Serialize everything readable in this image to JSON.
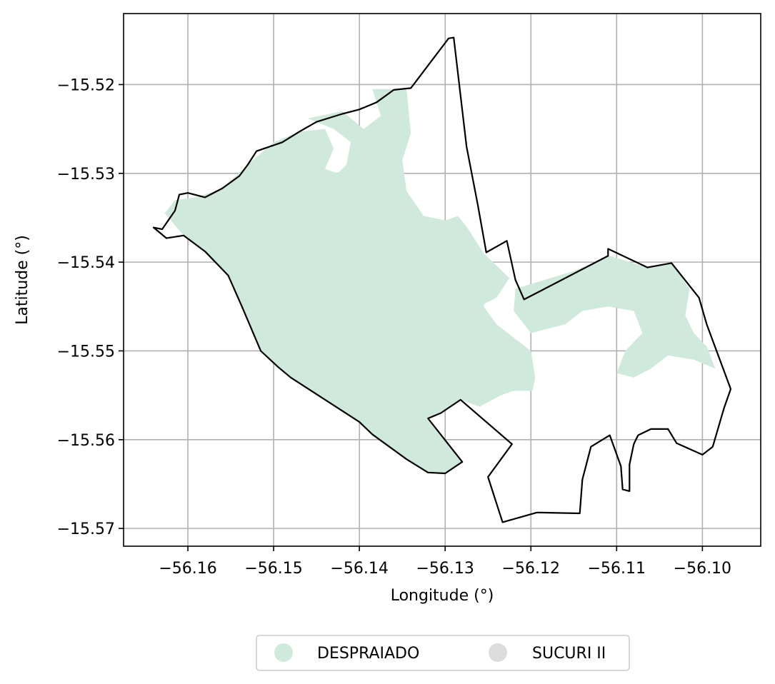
{
  "chart_data": {
    "type": "map",
    "xlabel": "Longitude (°)",
    "ylabel": "Latitude (°)",
    "xlim": [
      -56.1675,
      -56.0932
    ],
    "ylim": [
      -15.572,
      -15.512
    ],
    "x_ticks": [
      -56.16,
      -56.15,
      -56.14,
      -56.13,
      -56.12,
      -56.11,
      -56.1
    ],
    "x_tick_labels": [
      "−56.16",
      "−56.15",
      "−56.14",
      "−56.13",
      "−56.12",
      "−56.11",
      "−56.10"
    ],
    "y_ticks": [
      -15.52,
      -15.53,
      -15.54,
      -15.55,
      -15.56,
      -15.57
    ],
    "y_tick_labels": [
      "−15.52",
      "−15.53",
      "−15.54",
      "−15.55",
      "−15.56",
      "−15.57"
    ],
    "grid": true,
    "legend_position": "bottom-center",
    "legend": [
      {
        "label": "DESPRAIADO",
        "color": "#cfeadc"
      },
      {
        "label": "SUCURI II",
        "color": "#dcdcdc"
      }
    ],
    "boundary_color": "#000000",
    "boundary": [
      [
        -56.164,
        -15.5361
      ],
      [
        -56.163,
        -15.5363
      ],
      [
        -56.1615,
        -15.5342
      ],
      [
        -56.161,
        -15.5324
      ],
      [
        -56.16,
        -15.5322
      ],
      [
        -56.158,
        -15.5327
      ],
      [
        -56.156,
        -15.5317
      ],
      [
        -56.154,
        -15.5303
      ],
      [
        -56.153,
        -15.529
      ],
      [
        -56.152,
        -15.5275
      ],
      [
        -56.149,
        -15.5265
      ],
      [
        -56.147,
        -15.5253
      ],
      [
        -56.145,
        -15.5242
      ],
      [
        -56.142,
        -15.5233
      ],
      [
        -56.14,
        -15.5228
      ],
      [
        -56.138,
        -15.522
      ],
      [
        -56.136,
        -15.5206
      ],
      [
        -56.134,
        -15.5204
      ],
      [
        -56.1296,
        -15.5148
      ],
      [
        -56.129,
        -15.5147
      ],
      [
        -56.1275,
        -15.527
      ],
      [
        -56.1262,
        -15.5335
      ],
      [
        -56.1252,
        -15.5389
      ],
      [
        -56.1228,
        -15.5376
      ],
      [
        -56.1218,
        -15.542
      ],
      [
        -56.1208,
        -15.5442
      ],
      [
        -56.111,
        -15.5393
      ],
      [
        -56.111,
        -15.5385
      ],
      [
        -56.1064,
        -15.5406
      ],
      [
        -56.1036,
        -15.5401
      ],
      [
        -56.1004,
        -15.544
      ],
      [
        -56.0995,
        -15.547
      ],
      [
        -56.0967,
        -15.5543
      ],
      [
        -56.0975,
        -15.5565
      ],
      [
        -56.0988,
        -15.5608
      ],
      [
        -56.1,
        -15.5617
      ],
      [
        -56.103,
        -15.5604
      ],
      [
        -56.104,
        -15.5588
      ],
      [
        -56.106,
        -15.5588
      ],
      [
        -56.1075,
        -15.5595
      ],
      [
        -56.108,
        -15.5605
      ],
      [
        -56.1085,
        -15.5628
      ],
      [
        -56.1085,
        -15.5658
      ],
      [
        -56.1093,
        -15.5656
      ],
      [
        -56.1095,
        -15.563
      ],
      [
        -56.1108,
        -15.5595
      ],
      [
        -56.113,
        -15.5608
      ],
      [
        -56.114,
        -15.5645
      ],
      [
        -56.1143,
        -15.5683
      ],
      [
        -56.1193,
        -15.5682
      ],
      [
        -56.1233,
        -15.5693
      ],
      [
        -56.125,
        -15.5642
      ],
      [
        -56.1222,
        -15.5605
      ],
      [
        -56.1282,
        -15.5555
      ],
      [
        -56.1305,
        -15.557
      ],
      [
        -56.132,
        -15.5576
      ],
      [
        -56.128,
        -15.5625
      ],
      [
        -56.13,
        -15.5638
      ],
      [
        -56.132,
        -15.5637
      ],
      [
        -56.1345,
        -15.5622
      ],
      [
        -56.1385,
        -15.5594
      ],
      [
        -56.14,
        -15.558
      ],
      [
        -56.148,
        -15.553
      ],
      [
        -56.1495,
        -15.5518
      ],
      [
        -56.1515,
        -15.55
      ],
      [
        -56.1537,
        -15.545
      ],
      [
        -56.1553,
        -15.5415
      ],
      [
        -56.158,
        -15.5388
      ],
      [
        -56.1605,
        -15.537
      ],
      [
        -56.1625,
        -15.5373
      ],
      [
        -56.164,
        -15.5361
      ]
    ],
    "despraiado_fill": [
      [
        -56.1627,
        -15.5345
      ],
      [
        -56.1615,
        -15.533
      ],
      [
        -56.159,
        -15.5327
      ],
      [
        -56.156,
        -15.5317
      ],
      [
        -56.153,
        -15.529
      ],
      [
        -56.15,
        -15.5265
      ],
      [
        -56.147,
        -15.5253
      ],
      [
        -56.144,
        -15.525
      ],
      [
        -56.143,
        -15.5272
      ],
      [
        -56.144,
        -15.5295
      ],
      [
        -56.1425,
        -15.53
      ],
      [
        -56.1415,
        -15.529
      ],
      [
        -56.141,
        -15.5265
      ],
      [
        -56.143,
        -15.525
      ],
      [
        -56.146,
        -15.5238
      ],
      [
        -56.142,
        -15.523
      ],
      [
        -56.1395,
        -15.525
      ],
      [
        -56.1375,
        -15.5235
      ],
      [
        -56.1385,
        -15.5205
      ],
      [
        -56.1345,
        -15.5205
      ],
      [
        -56.134,
        -15.5255
      ],
      [
        -56.135,
        -15.5285
      ],
      [
        -56.1345,
        -15.532
      ],
      [
        -56.1325,
        -15.5348
      ],
      [
        -56.13,
        -15.5353
      ],
      [
        -56.1285,
        -15.5348
      ],
      [
        -56.1275,
        -15.536
      ],
      [
        -56.1255,
        -15.539
      ],
      [
        -56.1225,
        -15.5418
      ],
      [
        -56.124,
        -15.544
      ],
      [
        -56.127,
        -15.5455
      ],
      [
        -56.129,
        -15.547
      ],
      [
        -56.132,
        -15.55
      ],
      [
        -56.1345,
        -15.553
      ],
      [
        -56.137,
        -15.5537
      ],
      [
        -56.139,
        -15.554
      ],
      [
        -56.141,
        -15.552
      ],
      [
        -56.1395,
        -15.5505
      ],
      [
        -56.137,
        -15.547
      ],
      [
        -56.136,
        -15.5435
      ],
      [
        -56.134,
        -15.54
      ],
      [
        -56.1365,
        -15.539
      ],
      [
        -56.133,
        -15.5375
      ],
      [
        -56.1305,
        -15.5365
      ],
      [
        -56.128,
        -15.539
      ],
      [
        -56.126,
        -15.54
      ],
      [
        -56.1245,
        -15.542
      ],
      [
        -56.1255,
        -15.545
      ],
      [
        -56.124,
        -15.547
      ],
      [
        -56.12,
        -15.55
      ],
      [
        -56.1195,
        -15.553
      ],
      [
        -56.1198,
        -15.5545
      ],
      [
        -56.122,
        -15.5545
      ],
      [
        -56.1235,
        -15.555
      ],
      [
        -56.126,
        -15.5563
      ],
      [
        -56.1282,
        -15.5555
      ],
      [
        -56.1305,
        -15.557
      ],
      [
        -56.132,
        -15.5576
      ],
      [
        -56.128,
        -15.5625
      ],
      [
        -56.13,
        -15.5638
      ],
      [
        -56.132,
        -15.5637
      ],
      [
        -56.1345,
        -15.5622
      ],
      [
        -56.1385,
        -15.5594
      ],
      [
        -56.14,
        -15.558
      ],
      [
        -56.148,
        -15.553
      ],
      [
        -56.1495,
        -15.5518
      ],
      [
        -56.1515,
        -15.55
      ],
      [
        -56.1537,
        -15.545
      ],
      [
        -56.1553,
        -15.5415
      ],
      [
        -56.158,
        -15.5388
      ],
      [
        -56.1605,
        -15.537
      ],
      [
        -56.1627,
        -15.5345
      ]
    ],
    "despraiado_fill_east": [
      [
        -56.1218,
        -15.543
      ],
      [
        -56.115,
        -15.541
      ],
      [
        -56.1108,
        -15.5393
      ],
      [
        -56.1064,
        -15.5406
      ],
      [
        -56.1036,
        -15.5401
      ],
      [
        -56.1015,
        -15.543
      ],
      [
        -56.102,
        -15.546
      ],
      [
        -56.101,
        -15.548
      ],
      [
        -56.0995,
        -15.5495
      ],
      [
        -56.0985,
        -15.552
      ],
      [
        -56.101,
        -15.551
      ],
      [
        -56.104,
        -15.5505
      ],
      [
        -56.106,
        -15.552
      ],
      [
        -56.108,
        -15.553
      ],
      [
        -56.11,
        -15.5525
      ],
      [
        -56.109,
        -15.55
      ],
      [
        -56.107,
        -15.548
      ],
      [
        -56.108,
        -15.5455
      ],
      [
        -56.111,
        -15.545
      ],
      [
        -56.114,
        -15.5455
      ],
      [
        -56.116,
        -15.547
      ],
      [
        -56.12,
        -15.548
      ],
      [
        -56.122,
        -15.5455
      ],
      [
        -56.1218,
        -15.543
      ]
    ]
  }
}
